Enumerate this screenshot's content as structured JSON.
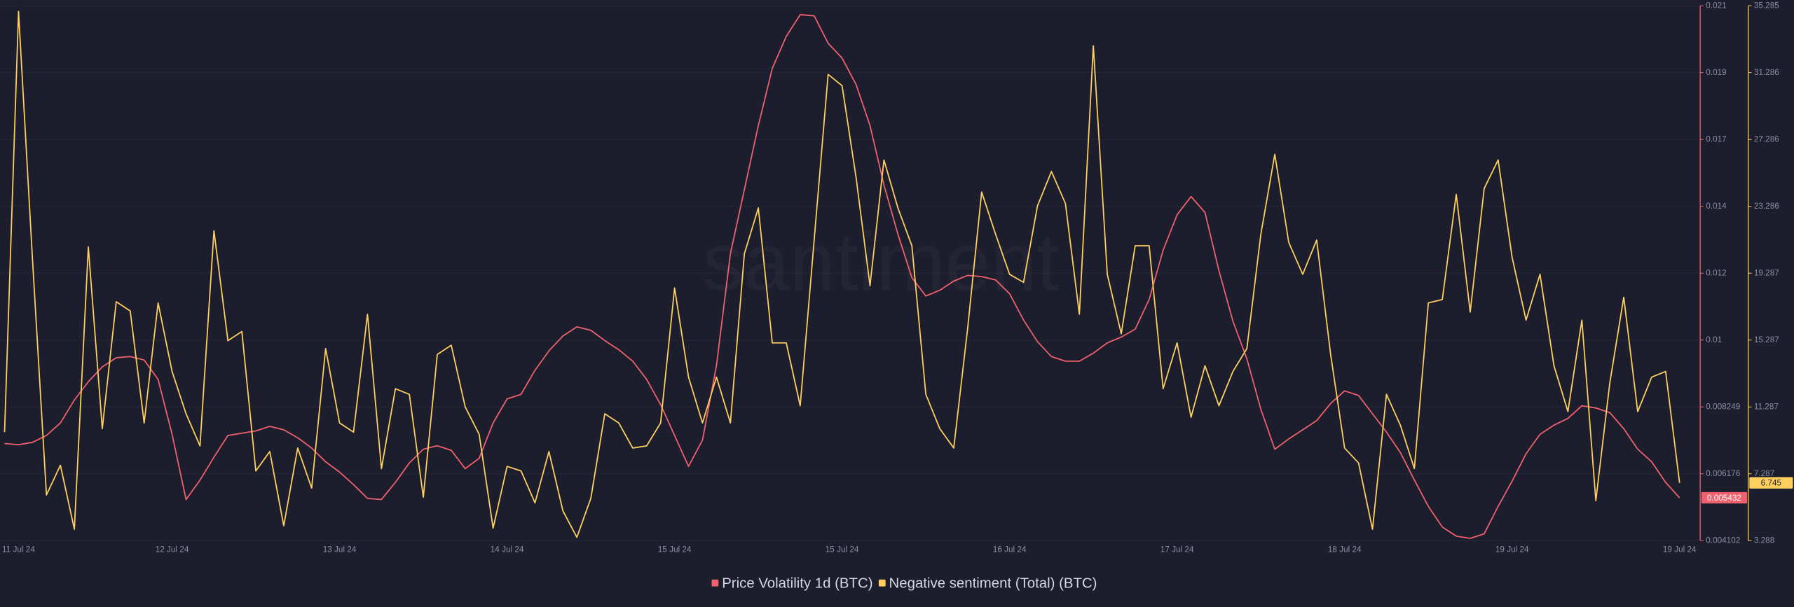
{
  "chart_data": {
    "type": "line",
    "watermark": "santiment",
    "categories": [
      null,
      "11 Jul 24",
      null,
      null,
      null,
      null,
      null,
      null,
      null,
      null,
      null,
      null,
      "12 Jul 24",
      null,
      null,
      null,
      null,
      null,
      null,
      null,
      null,
      null,
      null,
      null,
      "13 Jul 24",
      null,
      null,
      null,
      null,
      null,
      null,
      null,
      null,
      null,
      null,
      null,
      "14 Jul 24",
      null,
      null,
      null,
      null,
      null,
      null,
      null,
      null,
      null,
      null,
      null,
      "15 Jul 24",
      null,
      null,
      null,
      null,
      null,
      null,
      null,
      null,
      null,
      null,
      null,
      "15 Jul 24",
      null,
      null,
      null,
      null,
      null,
      null,
      null,
      null,
      null,
      null,
      null,
      "16 Jul 24",
      null,
      null,
      null,
      null,
      null,
      null,
      null,
      null,
      null,
      null,
      null,
      "17 Jul 24",
      null,
      null,
      null,
      null,
      null,
      null,
      null,
      null,
      null,
      null,
      null,
      "18 Jul 24",
      null,
      null,
      null,
      null,
      null,
      null,
      null,
      null,
      null,
      null,
      null,
      "19 Jul 24",
      null,
      null,
      null,
      null,
      null,
      null,
      null,
      null,
      null,
      null,
      null,
      "19 Jul 24"
    ],
    "series": [
      {
        "name": "Price Volatility 1d (BTC)",
        "color": "#f0616d",
        "values": [
          0.007115,
          0.00708,
          0.007151,
          0.007364,
          0.007754,
          0.008463,
          0.00903,
          0.009491,
          0.009774,
          0.00981,
          0.009704,
          0.009101,
          0.007399,
          0.005378,
          0.005981,
          0.00669,
          0.007364,
          0.007435,
          0.007505,
          0.007647,
          0.007541,
          0.007293,
          0.006974,
          0.006548,
          0.006229,
          0.005839,
          0.005414,
          0.005378,
          0.00591,
          0.006513,
          0.006938,
          0.007045,
          0.006903,
          0.006336,
          0.006655,
          0.007754,
          0.008498,
          0.00864,
          0.009385,
          0.009987,
          0.010448,
          0.010732,
          0.010625,
          0.010306,
          0.010023,
          0.009668,
          0.009101,
          0.008321,
          0.007364,
          0.006406,
          0.007222,
          0.009526,
          0.013001,
          0.014986,
          0.016972,
          0.018744,
          0.019737,
          0.02041,
          0.020375,
          0.019524,
          0.019063,
          0.018248,
          0.016972,
          0.015128,
          0.013603,
          0.012256,
          0.011689,
          0.011866,
          0.01215,
          0.012327,
          0.012292,
          0.012185,
          0.01176,
          0.010944,
          0.010271,
          0.00981,
          0.009668,
          0.009668,
          0.009916,
          0.010235,
          0.010413,
          0.010661,
          0.011583,
          0.013107,
          0.014206,
          0.014773,
          0.014277,
          0.012469,
          0.010909,
          0.009739,
          0.008179,
          0.006938,
          0.007257,
          0.007541,
          0.007825,
          0.008356,
          0.008746,
          0.008605,
          0.008037,
          0.00747,
          0.006832,
          0.005981,
          0.005166,
          0.004527,
          0.004244,
          0.004173,
          0.004315,
          0.005166,
          0.005946,
          0.006796,
          0.007399,
          0.007683,
          0.007895,
          0.008285,
          0.008215,
          0.008073,
          0.007576,
          0.006938,
          0.006548,
          0.00591,
          0.005432
        ]
      },
      {
        "name": "Negative sentiment (Total) (BTC)",
        "color": "#ffd05f",
        "axis": "y2",
        "values": [
          9.78,
          34.94,
          20.11,
          6.02,
          7.8,
          3.97,
          20.86,
          9.99,
          17.58,
          17.03,
          10.33,
          17.51,
          13.41,
          10.88,
          8.96,
          21.82,
          15.25,
          15.8,
          7.46,
          8.62,
          4.18,
          8.83,
          6.43,
          14.78,
          10.33,
          9.78,
          16.83,
          7.6,
          12.38,
          12.04,
          5.89,
          14.43,
          14.98,
          11.29,
          9.65,
          4.04,
          7.73,
          7.46,
          5.55,
          8.62,
          5.07,
          3.49,
          5.82,
          10.88,
          10.33,
          8.83,
          8.96,
          10.33,
          18.4,
          13.07,
          10.33,
          13.07,
          10.33,
          20.45,
          23.19,
          15.12,
          15.12,
          11.36,
          21.27,
          31.18,
          30.5,
          25.03,
          18.54,
          26.06,
          23.19,
          20.93,
          12.04,
          9.99,
          8.83,
          16.01,
          24.14,
          21.61,
          19.22,
          18.74,
          23.32,
          25.37,
          23.46,
          16.83,
          32.89,
          19.22,
          15.66,
          20.93,
          20.93,
          12.38,
          15.12,
          10.67,
          13.75,
          11.36,
          13.41,
          14.78,
          21.61,
          26.4,
          21.13,
          19.22,
          21.27,
          14.43,
          8.83,
          7.94,
          3.97,
          12.04,
          10.19,
          7.6,
          17.51,
          17.71,
          24,
          16.96,
          24.35,
          26.06,
          20.24,
          16.48,
          19.22,
          13.75,
          11.01,
          16.48,
          5.68,
          12.72,
          17.85,
          11.01,
          13.07,
          13.41,
          6.745
        ]
      }
    ],
    "ylim": [
      0.004102,
      0.020687
    ],
    "yticks": [
      0.004102,
      0.006176,
      0.008249,
      {
        "value": 0.010322,
        "label": "0.01"
      },
      {
        "value": 0.012395,
        "label": "0.012"
      },
      {
        "value": 0.014468,
        "label": "0.014"
      },
      {
        "value": 0.016541,
        "label": "0.017"
      },
      {
        "value": 0.018614,
        "label": "0.019"
      },
      {
        "value": 0.020687,
        "label": "0.021"
      }
    ],
    "y2lim": [
      3.288,
      35.285
    ],
    "y2ticks": [
      3.288,
      7.287,
      11.287,
      15.287,
      19.287,
      23.286,
      27.286,
      31.286,
      35.285
    ],
    "grid": true
  }
}
